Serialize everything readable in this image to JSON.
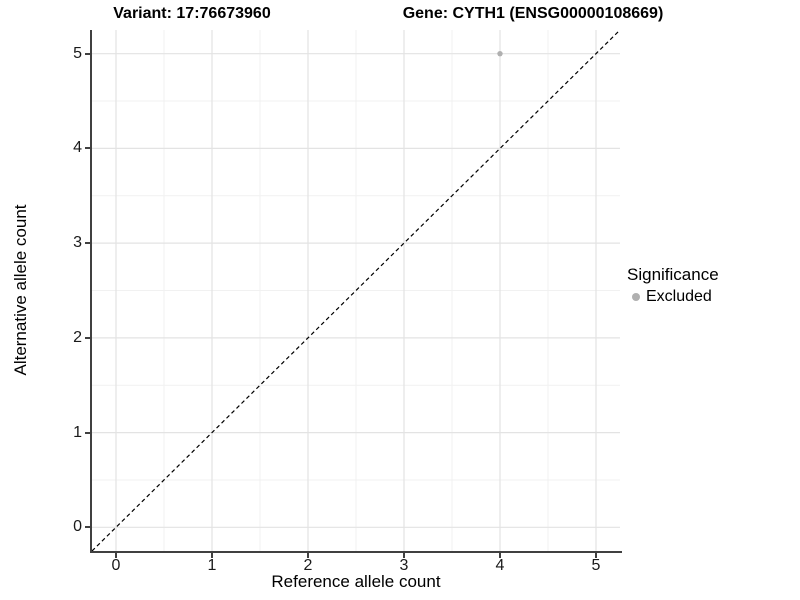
{
  "titles": {
    "variant": "Variant: 17:76673960",
    "gene": "Gene: CYTH1 (ENSG00000108669)"
  },
  "legend": {
    "title": "Significance",
    "items": [
      {
        "label": "Excluded",
        "color": "#b0b0b0"
      }
    ]
  },
  "chart_data": {
    "type": "scatter",
    "title": "Variant: 17:76673960 — Gene: CYTH1 (ENSG00000108669)",
    "xlabel": "Reference allele count",
    "ylabel": "Alternative allele count",
    "xlim": [
      -0.25,
      5.25
    ],
    "ylim": [
      -0.25,
      5.25
    ],
    "x_ticks": [
      0,
      1,
      2,
      3,
      4,
      5
    ],
    "y_ticks": [
      0,
      1,
      2,
      3,
      4,
      5
    ],
    "minor_grid_step": 0.5,
    "grid": true,
    "legend_position": "right",
    "series": [
      {
        "name": "Excluded",
        "color": "#b0b0b0",
        "points": [
          {
            "x": 4,
            "y": 5
          }
        ]
      }
    ],
    "reference_line": {
      "kind": "identity y = x",
      "style": "dashed",
      "color": "#000000"
    }
  },
  "colors": {
    "background": "#ffffff",
    "axis_line": "#404040",
    "grid_major": "#e3e3e3",
    "grid_minor": "#f1f1f1",
    "point": "#b0b0b0",
    "text": "#000000"
  }
}
